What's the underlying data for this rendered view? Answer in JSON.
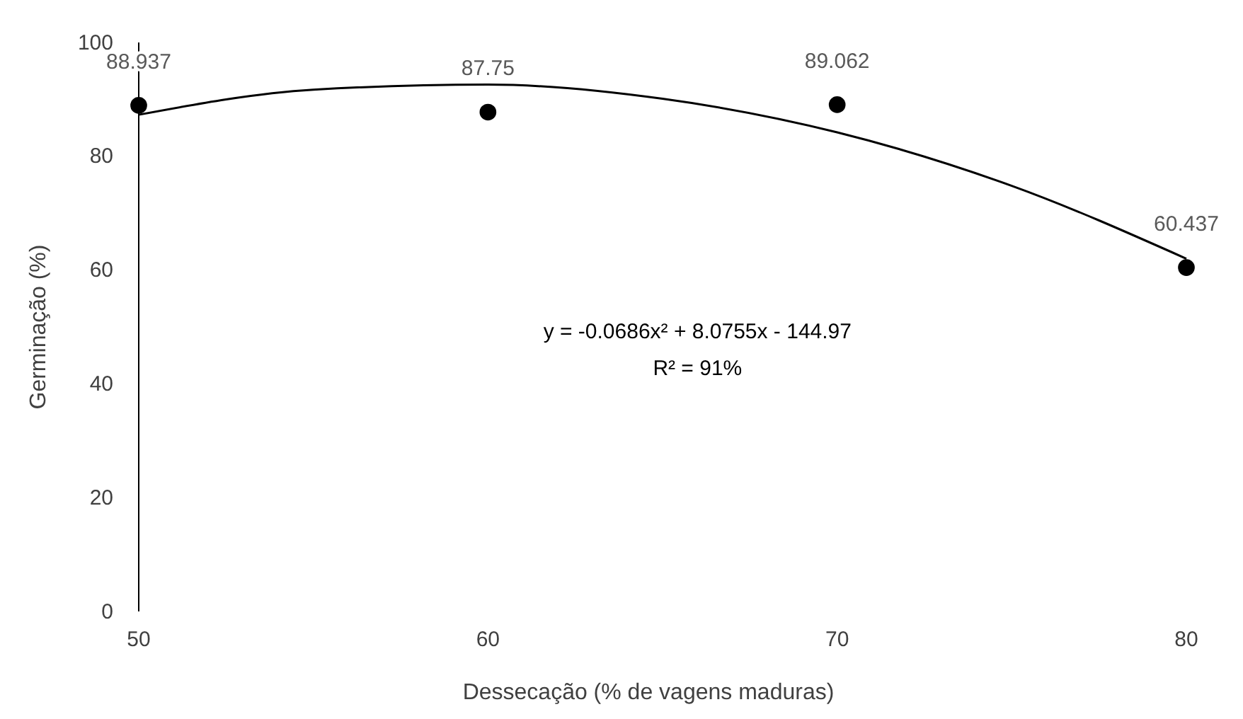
{
  "chart_data": {
    "type": "scatter",
    "xlabel": "Dessecação (% de vagens maduras)",
    "ylabel": "Germinação (%)",
    "xlim": [
      50,
      80
    ],
    "xticks": [
      50,
      60,
      70,
      80
    ],
    "ylim": [
      0,
      100
    ],
    "yticks": [
      0,
      20,
      40,
      60,
      80,
      100
    ],
    "grid": false,
    "annotations": [
      "y = -0.0686x² + 8.0755x - 144.97",
      "R² = 91%"
    ],
    "series": [
      {
        "color": "#000000",
        "marker": "circle",
        "x": [
          50,
          60,
          70,
          80
        ],
        "values": [
          88.937,
          87.75,
          89.062,
          60.437
        ],
        "value_labels": [
          "88.937",
          "87.75",
          "89.062",
          "60.437"
        ]
      },
      {
        "type": "line",
        "color": "#000000",
        "marker": "none",
        "line_style": "solid",
        "x": [
          50,
          55,
          60,
          65,
          70,
          75,
          80
        ],
        "values": [
          87.3,
          91.7,
          92.6,
          90.1,
          84.2,
          74.8,
          62.0
        ]
      }
    ]
  }
}
